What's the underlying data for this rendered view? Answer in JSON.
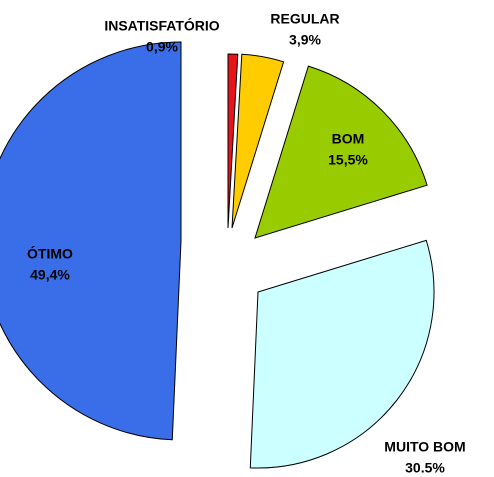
{
  "chart_data": {
    "type": "pie",
    "categories": [
      "INSATISFATÓRIO",
      "REGULAR",
      "BOM",
      "MUITO BOM",
      "ÓTIMO"
    ],
    "values": [
      0.9,
      3.9,
      15.5,
      30.5,
      49.4
    ],
    "value_labels": [
      "0,9%",
      "3,9%",
      "15,5%",
      "30.5%",
      "49,4%"
    ],
    "colors": [
      "#e8141c",
      "#ffcc00",
      "#99cc00",
      "#ccffff",
      "#3a6ee8"
    ]
  }
}
